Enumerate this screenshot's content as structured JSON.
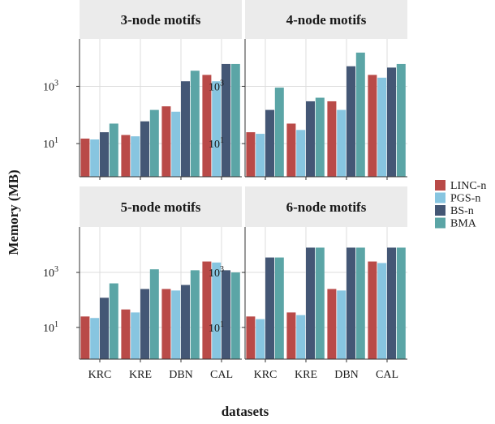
{
  "chart_data": {
    "type": "bar",
    "xlabel": "datasets",
    "ylabel": "Memory (MB)",
    "y_scale": "log10",
    "ylim": [
      0.7,
      45000
    ],
    "yticks": [
      {
        "value": 10,
        "label_base": "10",
        "label_exp": "1"
      },
      {
        "value": 1000,
        "label_base": "10",
        "label_exp": "3"
      }
    ],
    "grid": true,
    "legend_position": "right",
    "categories": [
      "KRC",
      "KRE",
      "DBN",
      "CAL"
    ],
    "legend": [
      "LINC-n",
      "PGS-n",
      "BS-n",
      "BMA"
    ],
    "colors": [
      "#b94a48",
      "#87c5e0",
      "#445775",
      "#5ba5a6"
    ],
    "panels": [
      {
        "title": "3-node motifs",
        "series": [
          {
            "name": "LINC-n",
            "values": [
              15,
              20,
              200,
              2500
            ]
          },
          {
            "name": "PGS-n",
            "values": [
              14,
              18,
              130,
              1500
            ]
          },
          {
            "name": "BS-n",
            "values": [
              25,
              60,
              1500,
              6000
            ]
          },
          {
            "name": "BMA",
            "values": [
              50,
              150,
              3500,
              6000
            ]
          }
        ]
      },
      {
        "title": "4-node motifs",
        "series": [
          {
            "name": "LINC-n",
            "values": [
              25,
              50,
              300,
              2500
            ]
          },
          {
            "name": "PGS-n",
            "values": [
              22,
              30,
              150,
              2000
            ]
          },
          {
            "name": "BS-n",
            "values": [
              150,
              300,
              5000,
              4500
            ]
          },
          {
            "name": "BMA",
            "values": [
              900,
              400,
              15000,
              6000
            ]
          }
        ]
      },
      {
        "title": "5-node motifs",
        "series": [
          {
            "name": "LINC-n",
            "values": [
              25,
              45,
              250,
              2500
            ]
          },
          {
            "name": "PGS-n",
            "values": [
              22,
              35,
              220,
              2300
            ]
          },
          {
            "name": "BS-n",
            "values": [
              120,
              250,
              350,
              1200
            ]
          },
          {
            "name": "BMA",
            "values": [
              400,
              1300,
              1200,
              1000
            ]
          }
        ]
      },
      {
        "title": "6-node motifs",
        "series": [
          {
            "name": "LINC-n",
            "values": [
              25,
              35,
              250,
              2500
            ]
          },
          {
            "name": "PGS-n",
            "values": [
              20,
              28,
              220,
              2200
            ]
          },
          {
            "name": "BS-n",
            "values": [
              3500,
              8000,
              8000,
              8000
            ]
          },
          {
            "name": "BMA",
            "values": [
              3500,
              8000,
              8000,
              8000
            ]
          }
        ]
      }
    ]
  }
}
